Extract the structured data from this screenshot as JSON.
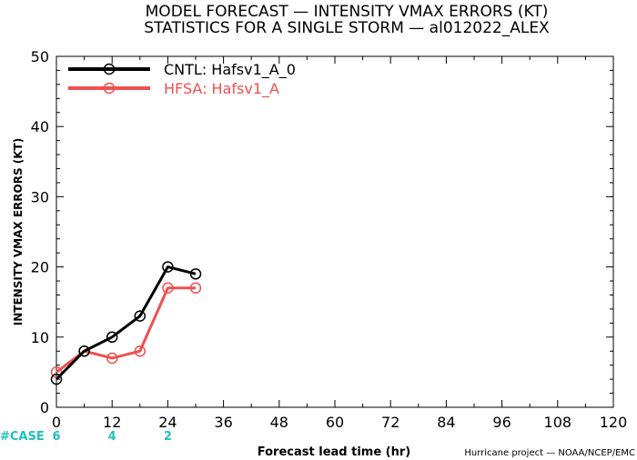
{
  "chart_data": {
    "type": "line",
    "title": "MODEL FORECAST — INTENSITY VMAX ERRORS (KT)",
    "subtitle": "STATISTICS FOR A SINGLE STORM — al012022_ALEX",
    "xlabel": "Forecast lead time (hr)",
    "ylabel": "INTENSITY VMAX ERRORS (KT)",
    "xlim": [
      0,
      120
    ],
    "ylim": [
      0,
      50
    ],
    "x_ticks": [
      0,
      12,
      24,
      36,
      48,
      60,
      72,
      84,
      96,
      108,
      120
    ],
    "y_ticks": [
      0,
      10,
      20,
      30,
      40,
      50
    ],
    "grid": false,
    "legend_position": "top-left",
    "series": [
      {
        "name": "CNTL: Hafsv1_A_0",
        "color": "#000000",
        "x": [
          0,
          6,
          12,
          18,
          24,
          30
        ],
        "values": [
          4,
          8,
          10,
          13,
          20,
          19
        ]
      },
      {
        "name": "HFSA: Hafsv1_A",
        "color": "#f05050",
        "x": [
          0,
          6,
          12,
          18,
          24,
          30
        ],
        "values": [
          5,
          8,
          7,
          8,
          17,
          17
        ]
      }
    ],
    "case_label": "#CASE",
    "case_color": "#20c0c0",
    "cases": [
      {
        "x": 0,
        "count": "6"
      },
      {
        "x": 12,
        "count": "4"
      },
      {
        "x": 24,
        "count": "2"
      }
    ],
    "credit": "Hurricane project — NOAA/NCEP/EMC"
  }
}
